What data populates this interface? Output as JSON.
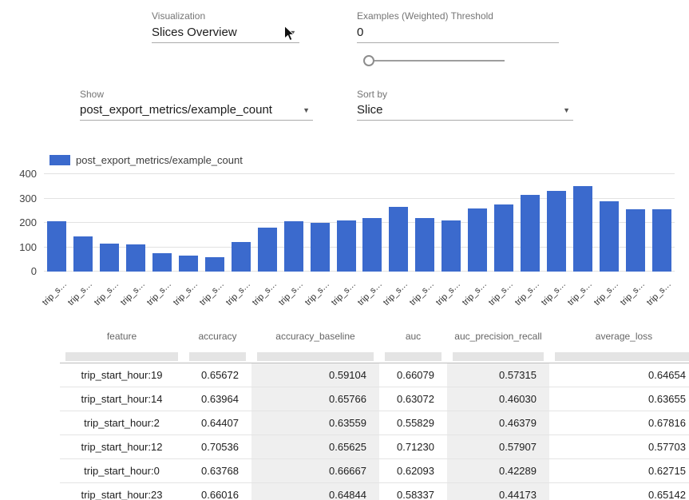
{
  "icons": {
    "dropdown_arrow": "▼"
  },
  "controls": {
    "visualization": {
      "label": "Visualization",
      "value": "Slices Overview"
    },
    "threshold": {
      "label": "Examples (Weighted) Threshold",
      "value": "0"
    },
    "show": {
      "label": "Show",
      "value": "post_export_metrics/example_count"
    },
    "sort_by": {
      "label": "Sort by",
      "value": "Slice"
    }
  },
  "chart_data": {
    "type": "bar",
    "legend": "post_export_metrics/example_count",
    "bar_color": "#3b6acd",
    "categories": [
      "trip_s…",
      "trip_s…",
      "trip_s…",
      "trip_s…",
      "trip_s…",
      "trip_s…",
      "trip_s…",
      "trip_s…",
      "trip_s…",
      "trip_s…",
      "trip_s…",
      "trip_s…",
      "trip_s…",
      "trip_s…",
      "trip_s…",
      "trip_s…",
      "trip_s…",
      "trip_s…",
      "trip_s…",
      "trip_s…",
      "trip_s…",
      "trip_s…",
      "trip_s…",
      "trip_s…"
    ],
    "values": [
      205,
      145,
      115,
      110,
      75,
      65,
      60,
      120,
      180,
      205,
      200,
      210,
      220,
      265,
      220,
      210,
      260,
      275,
      315,
      330,
      350,
      290,
      255,
      255
    ],
    "title": "",
    "xlabel": "",
    "ylabel": "",
    "ylim": [
      0,
      400
    ],
    "yticks": [
      0,
      100,
      200,
      300,
      400
    ],
    "grid": true,
    "legend_position": "top-left",
    "x_tick_style": "rotated-45"
  },
  "table": {
    "columns": [
      "feature",
      "accuracy",
      "accuracy_baseline",
      "auc",
      "auc_precision_recall",
      "average_loss"
    ],
    "rows": [
      [
        "trip_start_hour:19",
        "0.65672",
        "0.59104",
        "0.66079",
        "0.57315",
        "0.64654"
      ],
      [
        "trip_start_hour:14",
        "0.63964",
        "0.65766",
        "0.63072",
        "0.46030",
        "0.63655"
      ],
      [
        "trip_start_hour:2",
        "0.64407",
        "0.63559",
        "0.55829",
        "0.46379",
        "0.67816"
      ],
      [
        "trip_start_hour:12",
        "0.70536",
        "0.65625",
        "0.71230",
        "0.57907",
        "0.57703"
      ],
      [
        "trip_start_hour:0",
        "0.63768",
        "0.66667",
        "0.62093",
        "0.42289",
        "0.62715"
      ],
      [
        "trip_start_hour:23",
        "0.66016",
        "0.64844",
        "0.58337",
        "0.44173",
        "0.65142"
      ]
    ]
  }
}
